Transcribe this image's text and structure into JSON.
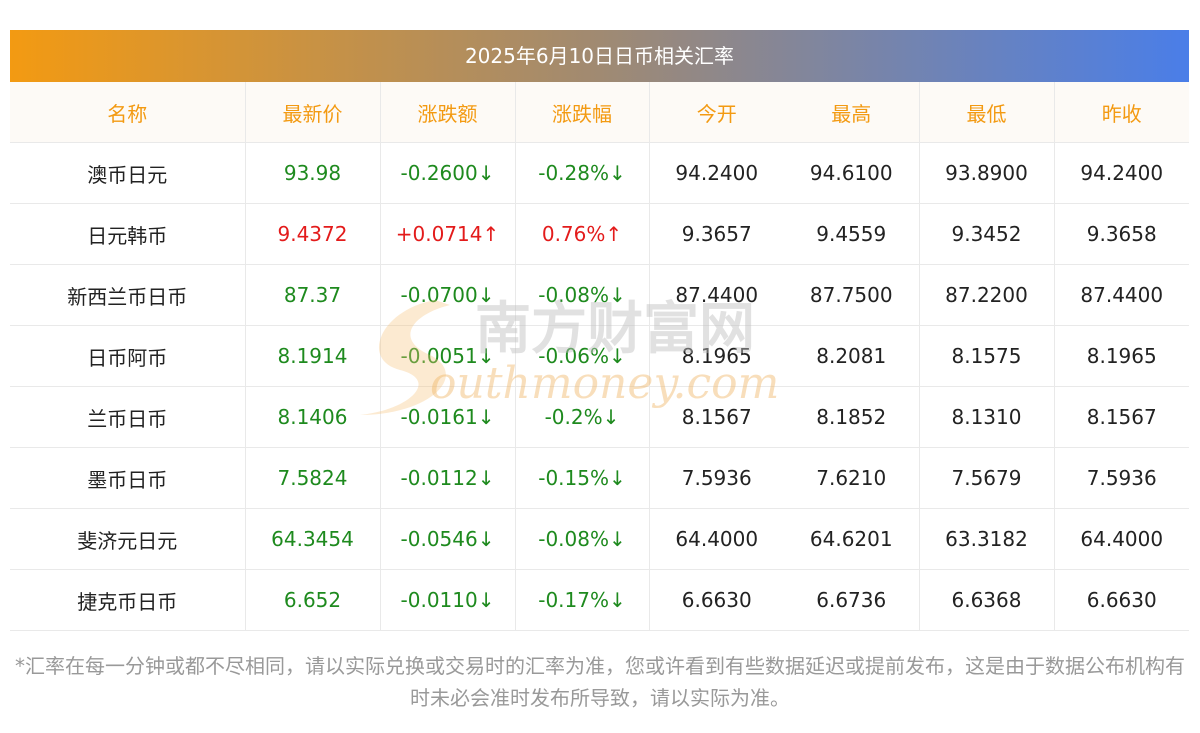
{
  "title": "2025年6月10日日币相关汇率",
  "headers": [
    "名称",
    "最新价",
    "涨跌额",
    "涨跌幅",
    "今开",
    "最高",
    "最低",
    "昨收"
  ],
  "rows": [
    {
      "name": "澳币日元",
      "last": "93.98",
      "change": "-0.2600↓",
      "pct": "-0.28%↓",
      "open": "94.2400",
      "high": "94.6100",
      "low": "93.8900",
      "prev": "94.2400",
      "dir": "down"
    },
    {
      "name": "日元韩币",
      "last": "9.4372",
      "change": "+0.0714↑",
      "pct": "0.76%↑",
      "open": "9.3657",
      "high": "9.4559",
      "low": "9.3452",
      "prev": "9.3658",
      "dir": "up"
    },
    {
      "name": "新西兰币日币",
      "last": "87.37",
      "change": "-0.0700↓",
      "pct": "-0.08%↓",
      "open": "87.4400",
      "high": "87.7500",
      "low": "87.2200",
      "prev": "87.4400",
      "dir": "down"
    },
    {
      "name": "日币阿币",
      "last": "8.1914",
      "change": "-0.0051↓",
      "pct": "-0.06%↓",
      "open": "8.1965",
      "high": "8.2081",
      "low": "8.1575",
      "prev": "8.1965",
      "dir": "down"
    },
    {
      "name": "兰币日币",
      "last": "8.1406",
      "change": "-0.0161↓",
      "pct": "-0.2%↓",
      "open": "8.1567",
      "high": "8.1852",
      "low": "8.1310",
      "prev": "8.1567",
      "dir": "down"
    },
    {
      "name": "墨币日币",
      "last": "7.5824",
      "change": "-0.0112↓",
      "pct": "-0.15%↓",
      "open": "7.5936",
      "high": "7.6210",
      "low": "7.5679",
      "prev": "7.5936",
      "dir": "down"
    },
    {
      "name": "斐济元日元",
      "last": "64.3454",
      "change": "-0.0546↓",
      "pct": "-0.08%↓",
      "open": "64.4000",
      "high": "64.6201",
      "low": "63.3182",
      "prev": "64.4000",
      "dir": "down"
    },
    {
      "name": "捷克币日币",
      "last": "6.652",
      "change": "-0.0110↓",
      "pct": "-0.17%↓",
      "open": "6.6630",
      "high": "6.6736",
      "low": "6.6368",
      "prev": "6.6630",
      "dir": "down"
    }
  ],
  "watermark": {
    "cn": "南方财富网",
    "en": "outhmoney.com"
  },
  "footnote": "*汇率在每一分钟或都不尽相同，请以实际兑换或交易时的汇率为准，您或许看到有些数据延迟或提前发布，这是由于数据公布机构有时未必会准时发布所导致，请以实际为准。",
  "colors": {
    "accent": "#f39a12",
    "up": "#e31b1b",
    "down": "#1e8a1e",
    "gradient_end": "#4a7ee8"
  }
}
